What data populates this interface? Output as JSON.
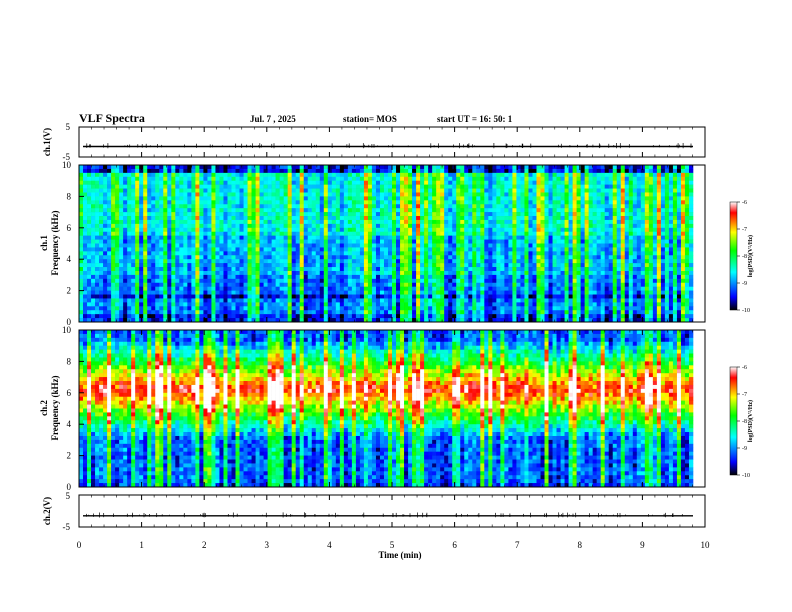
{
  "header": {
    "title": "VLF Spectra",
    "date": "Jul. 7 , 2025",
    "station": "station= MOS",
    "start": "start UT = 16: 50: 1"
  },
  "colors": {
    "low": "#000000",
    "mid1": "#0000ff",
    "mid2": "#00ffff",
    "mid3": "#00ff00",
    "mid4": "#ffff00",
    "high": "#ff0000",
    "top": "#ffffff"
  },
  "chart_data": [
    {
      "type": "line",
      "panel": "ch1-waveform",
      "ylabel": "ch.1(V)",
      "ylim": [
        -5,
        5
      ],
      "yticks": [
        "5",
        "-5"
      ],
      "baseline": -1.5
    },
    {
      "type": "heatmap",
      "panel": "ch1-spectrogram",
      "ylabel": "ch.1\nFrequency (kHz)",
      "ylim": [
        0,
        10
      ],
      "yticks": [
        "0",
        "2",
        "4",
        "6",
        "8",
        "10"
      ],
      "xlim": [
        0,
        10
      ],
      "colorbar": {
        "label": "log(PSD)(V²/Hz)",
        "range": [
          -10,
          -6
        ],
        "ticks": [
          "-6",
          "-7",
          "-8",
          "-9",
          "-10"
        ]
      },
      "notes": "Broadband impulsive bursts; strongest emission 0.5-9.5 kHz; dark band ~1.5 kHz"
    },
    {
      "type": "heatmap",
      "panel": "ch2-spectrogram",
      "ylabel": "ch.2\nFrequency (kHz)",
      "ylim": [
        0,
        10
      ],
      "yticks": [
        "0",
        "2",
        "4",
        "6",
        "8",
        "10"
      ],
      "xlim": [
        0,
        10
      ],
      "colorbar": {
        "label": "log(PSD)(V²/Hz)",
        "range": [
          -10,
          -6
        ],
        "ticks": [
          "-6",
          "-7",
          "-8",
          "-9",
          "-10"
        ]
      },
      "notes": "Intense band 5-8 kHz (red), falling off toward 0 and 10 kHz"
    },
    {
      "type": "line",
      "panel": "ch2-waveform",
      "ylabel": "ch.2(V)",
      "ylim": [
        -5,
        5
      ],
      "yticks": [
        "5",
        "-5"
      ],
      "baseline": -1.5
    }
  ],
  "xaxis": {
    "label": "Time (min)",
    "ticks": [
      "0",
      "1",
      "2",
      "3",
      "4",
      "5",
      "6",
      "7",
      "8",
      "9",
      "10"
    ],
    "range": [
      0,
      10
    ]
  }
}
